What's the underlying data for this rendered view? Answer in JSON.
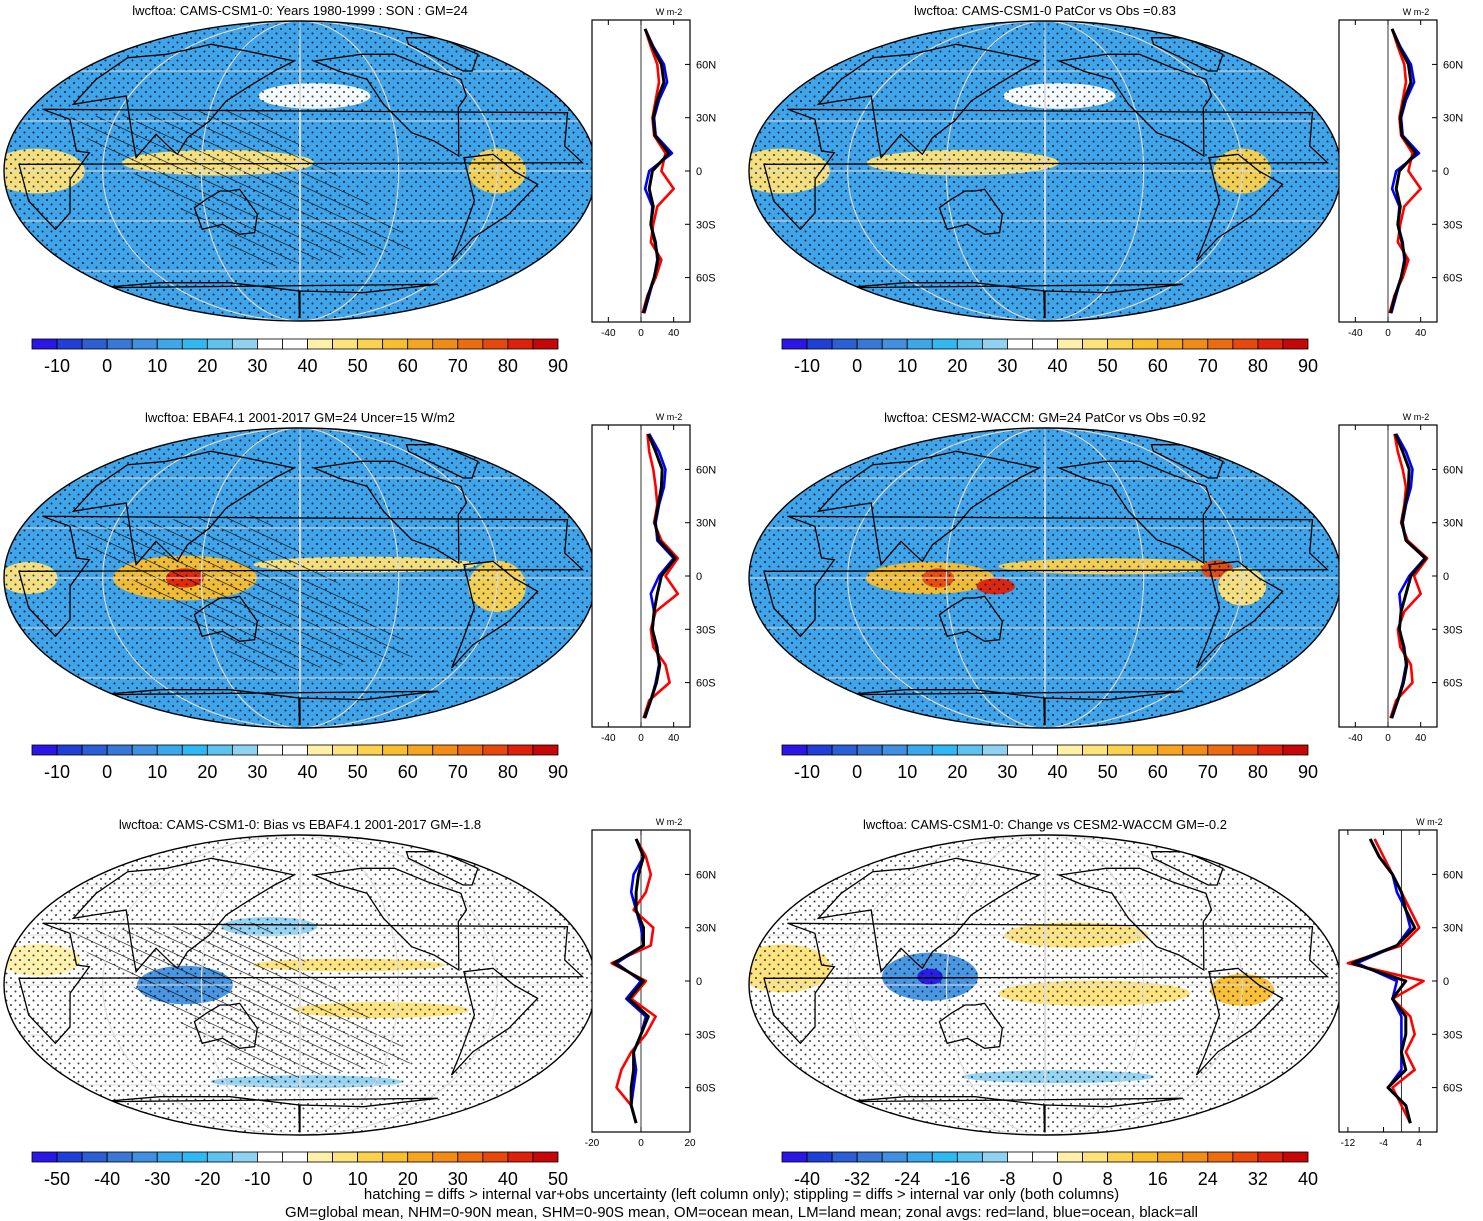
{
  "figure": {
    "footer_line1": "hatching = diffs > internal var+obs uncertainty (left column only); stippling = diffs > internal var only (both columns)",
    "footer_line2": "GM=global mean, NHM=0-90N mean, SHM=0-90S mean, OM=ocean mean, LM=land mean; zonal avgs: red=land, blue=ocean, black=all"
  },
  "zonal_legend": {
    "land": "#ff0000",
    "ocean": "#0000ff",
    "all": "#000000"
  },
  "zonal_unit": "W m-2",
  "lat_labels": [
    "60N",
    "30N",
    "0",
    "30S",
    "60S"
  ],
  "colorbars": {
    "abs": {
      "labels": [
        "-10",
        "0",
        "10",
        "20",
        "30",
        "40",
        "50",
        "60",
        "70",
        "80",
        "90"
      ],
      "colors": [
        "#2a16e6",
        "#1f3fd8",
        "#2b5fd5",
        "#3a78d8",
        "#3f90e0",
        "#3aa8eb",
        "#2fb9f2",
        "#5ec2ee",
        "#8fd2f2",
        "#ffffff",
        "#ffffff",
        "#fff1a8",
        "#fde37a",
        "#fbd24e",
        "#f9be2e",
        "#f6a521",
        "#f38c17",
        "#ee6c10",
        "#e8480c",
        "#e02109",
        "#c70707"
      ]
    },
    "bias": {
      "labels": [
        "-50",
        "-40",
        "-30",
        "-20",
        "-10",
        "0",
        "10",
        "20",
        "30",
        "40",
        "50"
      ],
      "colors": [
        "#2a16e6",
        "#1f3fd8",
        "#2b5fd5",
        "#3a78d8",
        "#3f90e0",
        "#3aa8eb",
        "#2fb9f2",
        "#5ec2ee",
        "#8fd2f2",
        "#ffffff",
        "#ffffff",
        "#fff1a8",
        "#fde37a",
        "#fbd24e",
        "#f9be2e",
        "#f6a521",
        "#f38c17",
        "#ee6c10",
        "#e8480c",
        "#e02109",
        "#c70707"
      ]
    },
    "change": {
      "labels": [
        "-40",
        "-32",
        "-24",
        "-16",
        "-8",
        "0",
        "8",
        "16",
        "24",
        "32",
        "40"
      ],
      "colors": [
        "#2a16e6",
        "#1f3fd8",
        "#2b5fd5",
        "#3a78d8",
        "#3f90e0",
        "#3aa8eb",
        "#2fb9f2",
        "#5ec2ee",
        "#8fd2f2",
        "#ffffff",
        "#ffffff",
        "#fff1a8",
        "#fde37a",
        "#fbd24e",
        "#f9be2e",
        "#f6a521",
        "#f38c17",
        "#ee6c10",
        "#e8480c",
        "#e02109",
        "#c70707"
      ]
    }
  },
  "panels": [
    {
      "title": "lwcftoa: CAMS-CSM1-0: Years 1980-1999 : SON : GM=24",
      "colorbar": "abs",
      "background": "#3fa4ea",
      "zonal_ticks": [
        "-40",
        "0",
        "40"
      ],
      "zonal_xlim": [
        -60,
        60
      ],
      "hatched": true,
      "zonal_data": {
        "lat": [
          80,
          70,
          60,
          50,
          40,
          30,
          20,
          10,
          0,
          -10,
          -20,
          -30,
          -40,
          -50,
          -60,
          -70,
          -80
        ],
        "land": [
          5,
          12,
          20,
          22,
          18,
          14,
          16,
          30,
          25,
          40,
          20,
          15,
          12,
          25,
          18,
          8,
          2
        ],
        "ocean": [
          5,
          15,
          28,
          32,
          22,
          16,
          18,
          38,
          10,
          5,
          14,
          12,
          18,
          20,
          16,
          10,
          4
        ],
        "all": [
          5,
          14,
          25,
          28,
          20,
          15,
          17,
          34,
          14,
          10,
          15,
          12,
          17,
          21,
          16,
          9,
          3
        ]
      },
      "anomalies": [
        {
          "lon": -340,
          "lat": 0,
          "rx": 30,
          "ry": 14,
          "color": "#fde37a"
        },
        {
          "lon": 130,
          "lat": 5,
          "rx": 60,
          "ry": 8,
          "color": "#fde37a"
        },
        {
          "lon": -60,
          "lat": 0,
          "rx": 18,
          "ry": 14,
          "color": "#fbd24e"
        },
        {
          "lon": -170,
          "lat": 45,
          "rx": 35,
          "ry": 8,
          "color": "#ffffff"
        }
      ]
    },
    {
      "title": "lwcftoa: CAMS-CSM1-0 PatCor vs Obs =0.83",
      "colorbar": "abs",
      "background": "#3fa4ea",
      "zonal_ticks": [
        "-40",
        "0",
        "40"
      ],
      "zonal_xlim": [
        -60,
        60
      ],
      "hatched": false,
      "zonal_data": {
        "lat": [
          80,
          70,
          60,
          50,
          40,
          30,
          20,
          10,
          0,
          -10,
          -20,
          -30,
          -40,
          -50,
          -60,
          -70,
          -80
        ],
        "land": [
          5,
          12,
          20,
          22,
          18,
          14,
          16,
          30,
          25,
          40,
          20,
          15,
          12,
          25,
          18,
          8,
          2
        ],
        "ocean": [
          5,
          15,
          28,
          32,
          22,
          16,
          18,
          38,
          10,
          5,
          14,
          12,
          18,
          20,
          16,
          10,
          4
        ],
        "all": [
          5,
          14,
          25,
          28,
          20,
          15,
          17,
          34,
          14,
          10,
          15,
          12,
          17,
          21,
          16,
          9,
          3
        ]
      },
      "anomalies": [
        {
          "lon": -340,
          "lat": 0,
          "rx": 30,
          "ry": 14,
          "color": "#fde37a"
        },
        {
          "lon": 130,
          "lat": 5,
          "rx": 60,
          "ry": 8,
          "color": "#fde37a"
        },
        {
          "lon": -60,
          "lat": 0,
          "rx": 18,
          "ry": 14,
          "color": "#fbd24e"
        },
        {
          "lon": -170,
          "lat": 45,
          "rx": 35,
          "ry": 8,
          "color": "#ffffff"
        }
      ]
    },
    {
      "title": "lwcftoa: EBAF4.1 2001-2017 GM=24 Uncer=15 W/m2",
      "colorbar": "abs",
      "background": "#3fa4ea",
      "zonal_ticks": [
        "-40",
        "0",
        "40"
      ],
      "zonal_xlim": [
        -60,
        60
      ],
      "hatched": true,
      "zonal_data": {
        "lat": [
          80,
          70,
          60,
          50,
          40,
          30,
          20,
          10,
          0,
          -10,
          -20,
          -30,
          -40,
          -50,
          -60,
          -70,
          -80
        ],
        "land": [
          8,
          10,
          15,
          18,
          20,
          16,
          25,
          45,
          30,
          45,
          18,
          12,
          15,
          30,
          35,
          10,
          3
        ],
        "ocean": [
          10,
          22,
          30,
          28,
          22,
          18,
          20,
          40,
          22,
          12,
          16,
          14,
          20,
          22,
          18,
          12,
          5
        ],
        "all": [
          9,
          18,
          26,
          25,
          21,
          17,
          22,
          42,
          25,
          20,
          16,
          14,
          19,
          23,
          19,
          12,
          4
        ]
      },
      "anomalies": [
        {
          "lon": 110,
          "lat": 0,
          "rx": 45,
          "ry": 14,
          "color": "#f9be2e"
        },
        {
          "lon": 110,
          "lat": 0,
          "rx": 12,
          "ry": 6,
          "color": "#e02109"
        },
        {
          "lon": -140,
          "lat": 8,
          "rx": 70,
          "ry": 5,
          "color": "#fde37a"
        },
        {
          "lon": -60,
          "lat": -5,
          "rx": 18,
          "ry": 16,
          "color": "#fbd24e"
        },
        {
          "lon": 15,
          "lat": 0,
          "rx": 18,
          "ry": 10,
          "color": "#fde37a"
        }
      ]
    },
    {
      "title": "lwcftoa: CESM2-WACCM: GM=24 PatCor vs Obs =0.92",
      "colorbar": "abs",
      "background": "#3fa4ea",
      "zonal_ticks": [
        "-40",
        "0",
        "40"
      ],
      "zonal_xlim": [
        -60,
        60
      ],
      "hatched": false,
      "zonal_data": {
        "lat": [
          80,
          70,
          60,
          50,
          40,
          30,
          20,
          10,
          0,
          -10,
          -20,
          -30,
          -40,
          -50,
          -60,
          -70,
          -80
        ],
        "land": [
          8,
          12,
          18,
          22,
          20,
          16,
          24,
          48,
          32,
          40,
          20,
          12,
          15,
          28,
          30,
          10,
          3
        ],
        "ocean": [
          10,
          22,
          30,
          28,
          22,
          18,
          22,
          45,
          26,
          14,
          16,
          14,
          20,
          22,
          18,
          12,
          5
        ],
        "all": [
          9,
          18,
          26,
          25,
          21,
          17,
          22,
          46,
          28,
          22,
          16,
          14,
          19,
          23,
          19,
          12,
          4
        ]
      },
      "anomalies": [
        {
          "lon": 110,
          "lat": 0,
          "rx": 40,
          "ry": 10,
          "color": "#f9be2e"
        },
        {
          "lon": 115,
          "lat": 0,
          "rx": 10,
          "ry": 6,
          "color": "#e8480c"
        },
        {
          "lon": -140,
          "lat": 7,
          "rx": 70,
          "ry": 5,
          "color": "#fbd24e"
        },
        {
          "lon": -75,
          "lat": 5,
          "rx": 10,
          "ry": 6,
          "color": "#e8480c"
        },
        {
          "lon": -60,
          "lat": -5,
          "rx": 15,
          "ry": 12,
          "color": "#fde37a"
        },
        {
          "lon": 150,
          "lat": -5,
          "rx": 12,
          "ry": 5,
          "color": "#e02109"
        }
      ]
    },
    {
      "title": "lwcftoa: CAMS-CSM1-0: Bias vs EBAF4.1 2001-2017  GM=-1.8",
      "colorbar": "bias",
      "background": "#ffffff",
      "zonal_ticks": [
        "-20",
        "0",
        "20"
      ],
      "zonal_xlim": [
        -20,
        20
      ],
      "hatched": true,
      "zonal_data": {
        "lat": [
          80,
          70,
          60,
          50,
          40,
          30,
          20,
          10,
          0,
          -10,
          -20,
          -30,
          -40,
          -50,
          -60,
          -70,
          -80
        ],
        "land": [
          -2,
          2,
          4,
          2,
          -3,
          5,
          4,
          -12,
          2,
          -4,
          6,
          2,
          -4,
          -8,
          -10,
          -4,
          -2
        ],
        "ocean": [
          -2,
          1,
          -3,
          -4,
          -2,
          0,
          1,
          -10,
          0,
          -6,
          2,
          0,
          -3,
          -2,
          -3,
          -4,
          -2
        ],
        "all": [
          -2,
          1,
          -1,
          -2,
          -2,
          1,
          1,
          -11,
          1,
          -5,
          3,
          0,
          -3,
          -3,
          -4,
          -4,
          -2
        ]
      },
      "anomalies": [
        {
          "lon": 110,
          "lat": 0,
          "rx": 30,
          "ry": 12,
          "color": "#3f90e0"
        },
        {
          "lon": -150,
          "lat": 12,
          "rx": 60,
          "ry": 4,
          "color": "#fde37a"
        },
        {
          "lon": -130,
          "lat": -15,
          "rx": 55,
          "ry": 5,
          "color": "#fde37a"
        },
        {
          "lon": 160,
          "lat": 35,
          "rx": 30,
          "ry": 6,
          "color": "#8fd2f2"
        },
        {
          "lon": -175,
          "lat": -58,
          "rx": 60,
          "ry": 4,
          "color": "#8fd2f2"
        },
        {
          "lon": -340,
          "lat": 15,
          "rx": 25,
          "ry": 10,
          "color": "#fff1a8"
        }
      ]
    },
    {
      "title": "lwcftoa: CAMS-CSM1-0: Change vs CESM2-WACCM GM=-0.2",
      "colorbar": "change",
      "background": "#ffffff",
      "zonal_ticks": [
        "-12",
        "-4",
        "4"
      ],
      "zonal_xlim": [
        -14,
        8
      ],
      "hatched": false,
      "zonal_data": {
        "lat": [
          80,
          70,
          60,
          50,
          40,
          30,
          20,
          10,
          0,
          -10,
          -20,
          -30,
          -40,
          -50,
          -60,
          -70,
          -80
        ],
        "land": [
          -6,
          -4,
          -2,
          0,
          2,
          4,
          0,
          -12,
          5,
          -2,
          2,
          3,
          1,
          3,
          -2,
          0,
          2
        ],
        "ocean": [
          -7,
          -5,
          -2,
          -1,
          1,
          2,
          -1,
          -10,
          -1,
          -2,
          0,
          0,
          0,
          0,
          -3,
          1,
          2
        ],
        "all": [
          -7,
          -5,
          -2,
          0,
          1,
          3,
          -1,
          -11,
          1,
          -2,
          1,
          1,
          0,
          1,
          -3,
          1,
          2
        ]
      },
      "anomalies": [
        {
          "lon": 110,
          "lat": 5,
          "rx": 30,
          "ry": 15,
          "color": "#3f90e0"
        },
        {
          "lon": 110,
          "lat": 5,
          "rx": 8,
          "ry": 5,
          "color": "#2a16e6"
        },
        {
          "lon": -150,
          "lat": -5,
          "rx": 60,
          "ry": 8,
          "color": "#fde37a"
        },
        {
          "lon": -60,
          "lat": -3,
          "rx": 20,
          "ry": 10,
          "color": "#f9be2e"
        },
        {
          "lon": -160,
          "lat": 30,
          "rx": 45,
          "ry": 8,
          "color": "#fde37a"
        },
        {
          "lon": -340,
          "lat": 10,
          "rx": 30,
          "ry": 15,
          "color": "#fde37a"
        },
        {
          "lon": -170,
          "lat": -55,
          "rx": 60,
          "ry": 4,
          "color": "#8fd2f2"
        }
      ]
    }
  ]
}
